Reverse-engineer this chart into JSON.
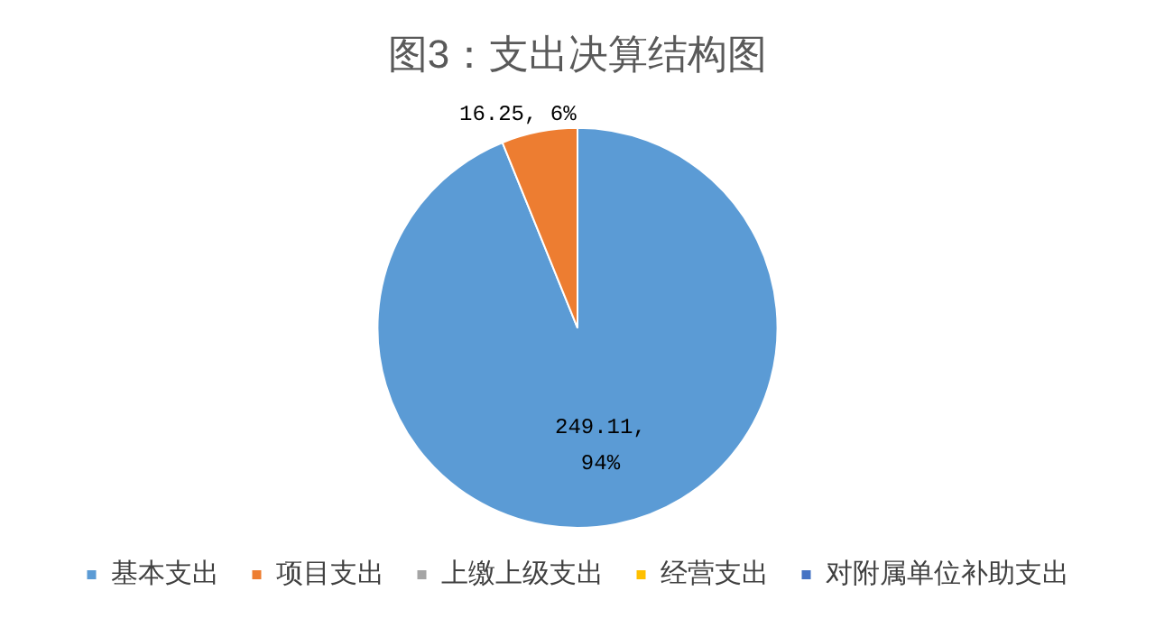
{
  "chart_data": {
    "type": "pie",
    "title": "图3：支出决算结构图",
    "categories": [
      "基本支出",
      "项目支出",
      "上缴上级支出",
      "经营支出",
      "对附属单位补助支出"
    ],
    "values": [
      249.11,
      16.25,
      0,
      0,
      0
    ],
    "colors": [
      "#5b9bd5",
      "#ed7d31",
      "#a5a5a5",
      "#ffc000",
      "#4472c4"
    ],
    "value_labels": [
      "249.11, 94%",
      "16.25, 6%",
      null,
      null,
      null
    ],
    "legend": "bottom"
  }
}
